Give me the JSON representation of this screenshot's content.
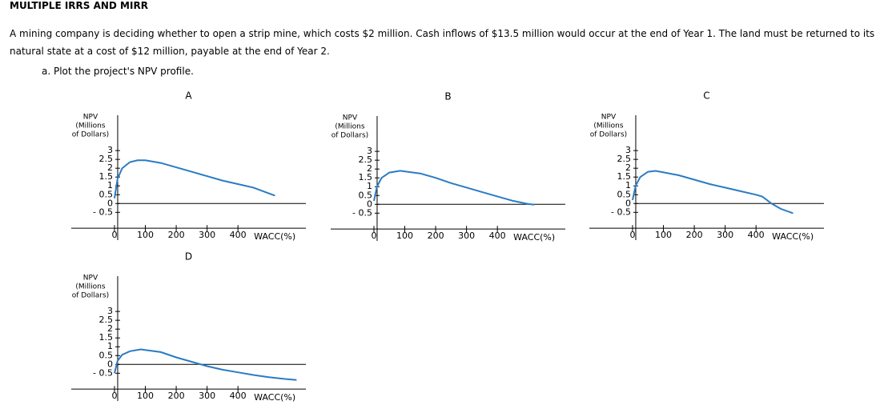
{
  "title": "MULTIPLE IRRS AND MIRR",
  "problem": "A mining company is deciding whether to open a strip mine, which costs $2 million. Cash inflows of $13.5 million would occur at the end of Year 1. The land must be returned to its natural state at a cost of $12 million, payable at the end of Year 2.",
  "question": "a. Plot the project's NPV profile.",
  "chart_data": [
    {
      "type": "line",
      "title": "A",
      "ylabel": [
        "NPV",
        "(Millions",
        "of Dollars)"
      ],
      "xlabel": "WACC(%)",
      "color": "#2a7bc4",
      "x": [
        0,
        10,
        25,
        50,
        75,
        100,
        150,
        200,
        250,
        300,
        350,
        400,
        450,
        520
      ],
      "values": [
        0.3,
        1.4,
        2.0,
        2.35,
        2.45,
        2.45,
        2.3,
        2.05,
        1.8,
        1.55,
        1.3,
        1.1,
        0.9,
        0.45
      ],
      "xlim": [
        -140,
        620
      ],
      "ylim": [
        -1.8,
        5
      ],
      "xticks": [
        0,
        100,
        200,
        300,
        400
      ],
      "yticks": [
        {
          "value": -0.5,
          "label": "- 0.5"
        },
        0,
        0.5,
        1,
        1.5,
        2,
        2.5,
        3
      ]
    },
    {
      "type": "line",
      "title": "B",
      "ylabel": [
        "NPV",
        "(Millions",
        "of Dollars)"
      ],
      "xlabel": "WACC(%)",
      "color": "#2a7bc4",
      "x": [
        0,
        10,
        25,
        50,
        85,
        150,
        200,
        250,
        300,
        350,
        400,
        450,
        500,
        520
      ],
      "values": [
        0.2,
        1.0,
        1.5,
        1.8,
        1.9,
        1.75,
        1.5,
        1.2,
        0.95,
        0.7,
        0.45,
        0.2,
        0.02,
        -0.02
      ],
      "xlim": [
        -140,
        620
      ],
      "ylim": [
        -1.8,
        5
      ],
      "xticks": [
        0,
        100,
        200,
        300,
        400
      ],
      "yticks": [
        {
          "value": -0.5,
          "label": "- 0.5"
        },
        0,
        0.5,
        1,
        1.5,
        2,
        2.5,
        3
      ]
    },
    {
      "type": "line",
      "title": "C",
      "ylabel": [
        "NPV",
        "(Millions",
        "of Dollars)"
      ],
      "xlabel": "WACC(%)",
      "color": "#2a7bc4",
      "x": [
        0,
        10,
        25,
        50,
        75,
        150,
        200,
        250,
        300,
        350,
        400,
        420,
        450,
        480,
        520
      ],
      "values": [
        0.2,
        1.0,
        1.5,
        1.8,
        1.85,
        1.6,
        1.35,
        1.1,
        0.9,
        0.7,
        0.5,
        0.4,
        0.0,
        -0.3,
        -0.55
      ],
      "xlim": [
        -140,
        620
      ],
      "ylim": [
        -1.8,
        5
      ],
      "xticks": [
        0,
        100,
        200,
        300,
        400
      ],
      "yticks": [
        {
          "value": -0.5,
          "label": "- 0.5"
        },
        0,
        0.5,
        1,
        1.5,
        2,
        2.5,
        3
      ]
    },
    {
      "type": "line",
      "title": "D",
      "ylabel": [
        "NPV",
        "(Millions",
        "of Dollars)"
      ],
      "xlabel": "WACC(%)",
      "color": "#2a7bc4",
      "x": [
        0,
        10,
        25,
        50,
        85,
        150,
        200,
        250,
        300,
        350,
        400,
        450,
        500,
        550,
        590
      ],
      "values": [
        -0.5,
        0.2,
        0.55,
        0.75,
        0.85,
        0.7,
        0.4,
        0.15,
        -0.1,
        -0.3,
        -0.45,
        -0.6,
        -0.72,
        -0.82,
        -0.88
      ],
      "xlim": [
        -140,
        620
      ],
      "ylim": [
        -1.8,
        5
      ],
      "xticks": [
        0,
        100,
        200,
        300,
        400
      ],
      "yticks": [
        {
          "value": -0.5,
          "label": "- 0.5"
        },
        0,
        0.5,
        1,
        1.5,
        2,
        2.5,
        3
      ]
    }
  ]
}
